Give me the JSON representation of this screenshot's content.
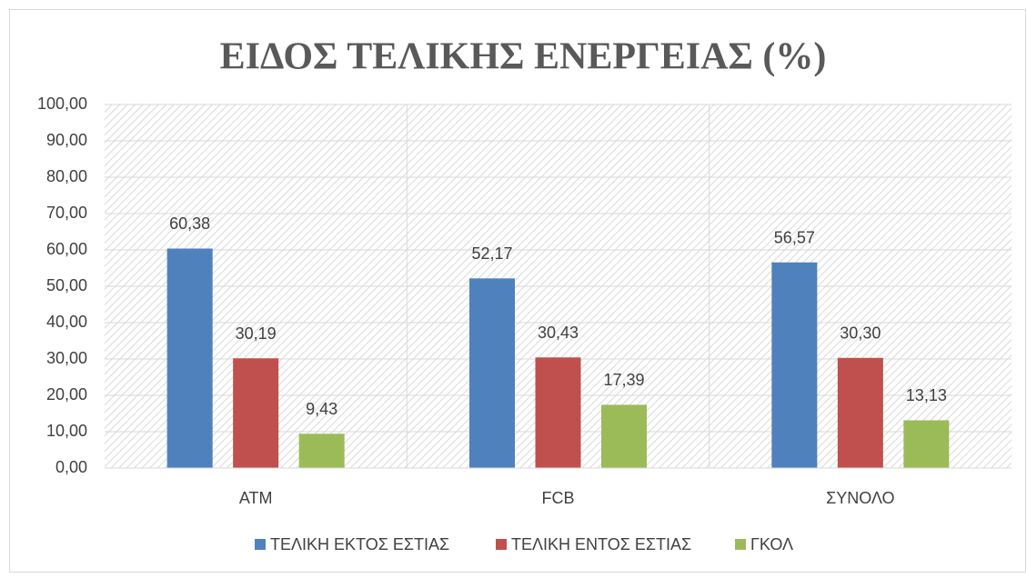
{
  "chart_data": {
    "type": "bar",
    "title": "ΕΙΔΟΣ ΤΕΛΙΚΗΣ ΕΝΕΡΓΕΙΑΣ (%)",
    "categories": [
      "ATM",
      "FCB",
      "ΣΥΝΟΛΟ"
    ],
    "series": [
      {
        "name": "ΤΕΛΙΚΗ ΕΚΤΟΣ ΕΣΤΙΑΣ",
        "color": "#4f81bd",
        "values": [
          60.38,
          52.17,
          56.57
        ],
        "value_labels": [
          "60,38",
          "52,17",
          "56,57"
        ]
      },
      {
        "name": "ΤΕΛΙΚΗ ΕΝΤΟΣ ΕΣΤΙΑΣ",
        "color": "#c0504d",
        "values": [
          30.19,
          30.43,
          30.3
        ],
        "value_labels": [
          "30,19",
          "30,43",
          "30,30"
        ]
      },
      {
        "name": "ΓΚΟΛ",
        "color": "#9bbb59",
        "values": [
          9.43,
          17.39,
          13.13
        ],
        "value_labels": [
          "9,43",
          "17,39",
          "13,13"
        ]
      }
    ],
    "ylim": [
      0,
      100
    ],
    "yticks": [
      {
        "value": 0,
        "label": "0,00"
      },
      {
        "value": 10,
        "label": "10,00"
      },
      {
        "value": 20,
        "label": "20,00"
      },
      {
        "value": 30,
        "label": "30,00"
      },
      {
        "value": 40,
        "label": "40,00"
      },
      {
        "value": 50,
        "label": "50,00"
      },
      {
        "value": 60,
        "label": "60,00"
      },
      {
        "value": 70,
        "label": "70,00"
      },
      {
        "value": 80,
        "label": "80,00"
      },
      {
        "value": 90,
        "label": "90,00"
      },
      {
        "value": 100,
        "label": "100,00"
      }
    ],
    "grid": true,
    "legend": "bottom"
  }
}
